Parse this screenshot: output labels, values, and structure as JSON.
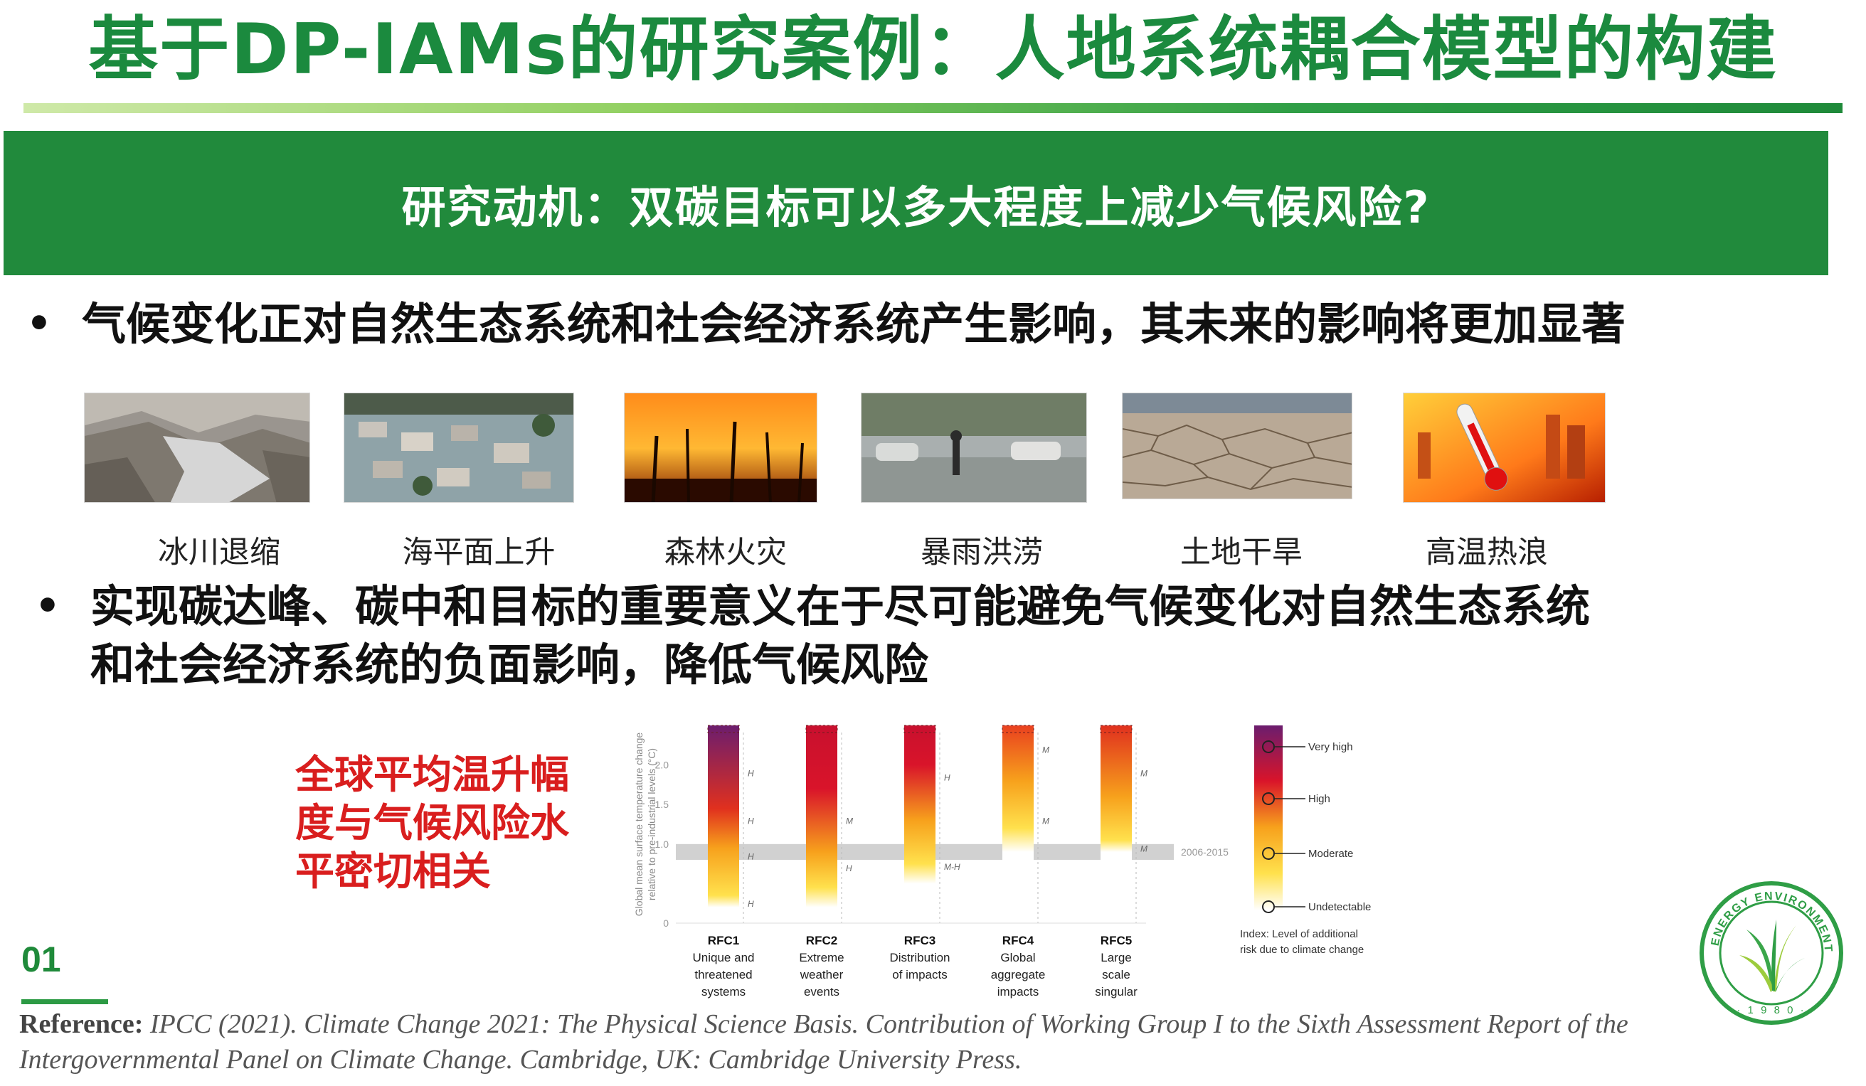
{
  "title": "基于DP-IAMs的研究案例：人地系统耦合模型的构建",
  "banner": "研究动机：双碳目标可以多大程度上减少气候风险?",
  "bullets": {
    "dot": "•",
    "first": "气候变化正对自然生态系统和社会经济系统产生影响，其未来的影响将更加显著",
    "second_line1": "实现碳达峰、碳中和目标的重要意义在于尽可能避免气候变化对自然生态系统",
    "second_line2": "和社会经济系统的负面影响，降低气候风险"
  },
  "photos": [
    {
      "label": "冰川退缩",
      "icon": "glacier-photo"
    },
    {
      "label": "海平面上升",
      "icon": "flood-coast-photo"
    },
    {
      "label": "森林火灾",
      "icon": "wildfire-photo"
    },
    {
      "label": "暴雨洪涝",
      "icon": "rainstorm-photo"
    },
    {
      "label": "土地干旱",
      "icon": "drought-photo"
    },
    {
      "label": "高温热浪",
      "icon": "heatwave-photo"
    }
  ],
  "red_note": [
    "全球平均温升幅",
    "度与气候风险水",
    "平密切相关"
  ],
  "page_number": "01",
  "reference": {
    "label": "Reference:",
    "body": "IPCC (2021). Climate Change 2021: The Physical Science Basis. Contribution of Working Group I to the Sixth Assessment Report of the Intergovernmental Panel on Climate Change. Cambridge, UK: Cambridge University Press."
  },
  "colors": {
    "brand_green": "#218a3c",
    "title_green": "#1b8a3e",
    "note_red": "#d91e1e"
  },
  "chart_data": {
    "type": "bar",
    "ylabel_line1": "Global mean surface temperature change",
    "ylabel_line2": "relative to pre-industrial levels (°C)",
    "ylim": [
      0,
      2.5
    ],
    "yticks": [
      "0",
      "1.0",
      "1.5",
      "2.0"
    ],
    "ytick_values": [
      0,
      1.0,
      1.5,
      2.0
    ],
    "band_label": "2006-2015",
    "band_range": [
      0.8,
      1.0
    ],
    "categories": [
      {
        "code": "RFC1",
        "desc": [
          "Unique and",
          "threatened",
          "systems"
        ],
        "stops": [
          [
            0.2,
            "#ffffff"
          ],
          [
            0.35,
            "#ffe14d"
          ],
          [
            0.95,
            "#f7a11c"
          ],
          [
            1.45,
            "#e0301e"
          ],
          [
            2.5,
            "#6b1d6e"
          ]
        ],
        "confidence": [
          {
            "y": 0.25,
            "t": "H"
          },
          {
            "y": 0.85,
            "t": "H"
          },
          {
            "y": 1.3,
            "t": "H"
          },
          {
            "y": 1.9,
            "t": "H"
          }
        ]
      },
      {
        "code": "RFC2",
        "desc": [
          "Extreme",
          "weather",
          "events"
        ],
        "stops": [
          [
            0.2,
            "#ffffff"
          ],
          [
            0.45,
            "#ffe14d"
          ],
          [
            0.9,
            "#f7a11c"
          ],
          [
            1.7,
            "#d9142a"
          ],
          [
            2.5,
            "#c8102e"
          ]
        ],
        "confidence": [
          {
            "y": 0.7,
            "t": "H"
          },
          {
            "y": 1.3,
            "t": "M"
          }
        ]
      },
      {
        "code": "RFC3",
        "desc": [
          "Distribution",
          "of impacts"
        ],
        "stops": [
          [
            0.5,
            "#ffffff"
          ],
          [
            0.75,
            "#ffe14d"
          ],
          [
            1.3,
            "#f7a11c"
          ],
          [
            2.0,
            "#d9142a"
          ],
          [
            2.5,
            "#c8102e"
          ]
        ],
        "confidence": [
          {
            "y": 0.72,
            "t": "M-H"
          },
          {
            "y": 1.85,
            "t": "H"
          }
        ]
      },
      {
        "code": "RFC4",
        "desc": [
          "Global",
          "aggregate",
          "impacts"
        ],
        "stops": [
          [
            0.9,
            "#ffffff"
          ],
          [
            1.2,
            "#ffe14d"
          ],
          [
            1.8,
            "#f7a11c"
          ],
          [
            2.5,
            "#e9401f"
          ]
        ],
        "confidence": [
          {
            "y": 1.3,
            "t": "M"
          },
          {
            "y": 2.2,
            "t": "M"
          }
        ]
      },
      {
        "code": "RFC5",
        "desc": [
          "Large",
          "scale",
          "singular"
        ],
        "stops": [
          [
            0.9,
            "#ffffff"
          ],
          [
            1.05,
            "#ffe14d"
          ],
          [
            1.6,
            "#f7a11c"
          ],
          [
            2.5,
            "#e0301e"
          ]
        ],
        "confidence": [
          {
            "y": 0.95,
            "t": "M"
          },
          {
            "y": 1.9,
            "t": "M"
          }
        ]
      }
    ],
    "legend": {
      "title_line1": "Index: Level of additional",
      "title_line2": "risk due to climate change",
      "levels": [
        "Very high",
        "High",
        "Moderate",
        "Undetectable"
      ]
    }
  }
}
